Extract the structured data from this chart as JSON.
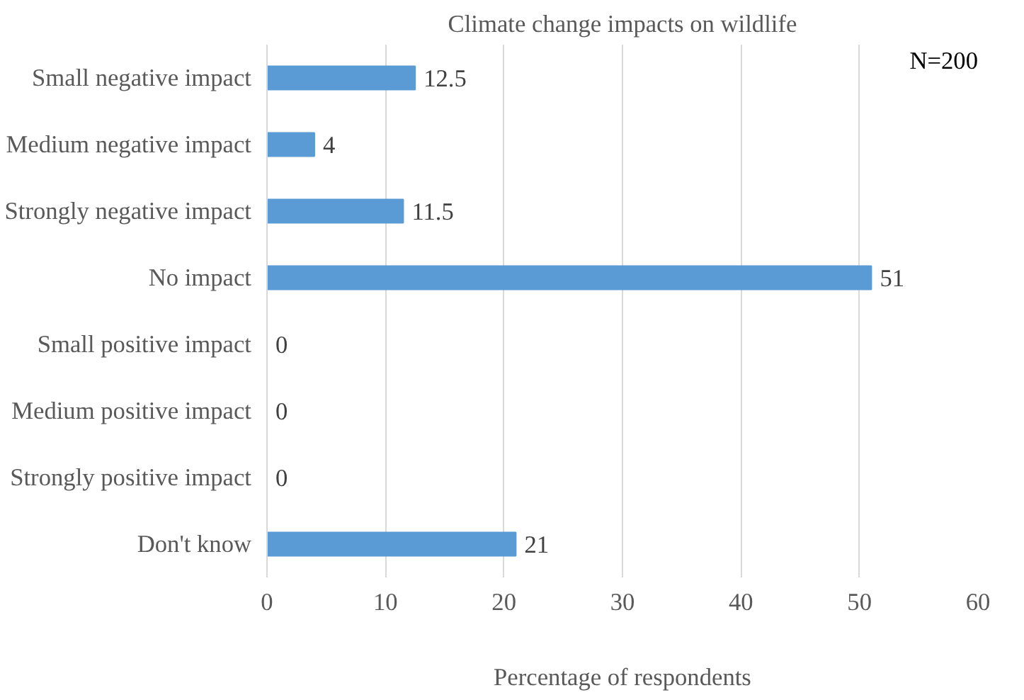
{
  "chart_data": {
    "type": "bar",
    "orientation": "horizontal",
    "title": "Climate change impacts on wildlife",
    "xlabel": "Percentage of respondents",
    "annotations": [
      "N=200"
    ],
    "categories": [
      "Small negative impact",
      "Medium negative impact",
      "Strongly negative impact",
      "No impact",
      "Small positive impact",
      "Medium positive impact",
      "Strongly positive impact",
      "Don't know"
    ],
    "values": [
      12.5,
      4,
      11.5,
      51,
      0,
      0,
      0,
      21
    ],
    "color": "#5b9bd5",
    "xlim": [
      0,
      60
    ],
    "xticks": [
      0,
      10,
      20,
      30,
      40,
      50,
      60
    ],
    "grid": "x",
    "data_labels": true
  }
}
